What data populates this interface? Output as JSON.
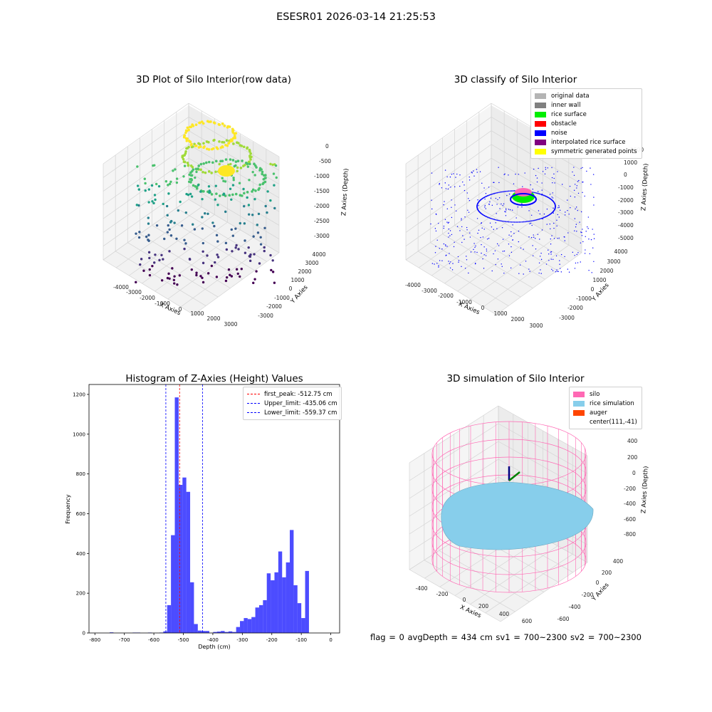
{
  "suptitle": "ESESR01 2026-03-14 21:25:53",
  "panels": {
    "raw": {
      "title": "3D Plot of Silo Interior(row data)",
      "xlabel": "X Axies",
      "ylabel": "Y Axies",
      "zlabel": "Z Axies (Depth)",
      "xticks": [
        "-4000",
        "-3000",
        "-2000",
        "-1000",
        "0",
        "1000",
        "2000",
        "3000"
      ],
      "yticks": [
        "4000",
        "3000",
        "2000",
        "1000",
        "0",
        "-1000",
        "-2000",
        "-3000"
      ],
      "zticks": [
        "0",
        "-500",
        "-1000",
        "-1500",
        "-2000",
        "-2500",
        "-3000"
      ]
    },
    "classify": {
      "title": "3D classify of Silo Interior",
      "xlabel": "X Axies",
      "ylabel": "Y Axies",
      "zlabel": "Z Axies (Depth)",
      "xticks": [
        "-4000",
        "-3000",
        "-2000",
        "-1000",
        "0",
        "1000",
        "2000",
        "3000"
      ],
      "yticks": [
        "4000",
        "3000",
        "2000",
        "1000",
        "0",
        "-1000",
        "-2000",
        "-3000"
      ],
      "zticks": [
        "2000",
        "1000",
        "0",
        "-1000",
        "-2000",
        "-3000",
        "-4000",
        "-5000"
      ],
      "legend": [
        {
          "label": "original data",
          "color": "#b4b4b4"
        },
        {
          "label": "inner wall",
          "color": "#808080"
        },
        {
          "label": "rice surface",
          "color": "#00ee00"
        },
        {
          "label": "obstacle",
          "color": "#ff0000"
        },
        {
          "label": "noise",
          "color": "#0000ff"
        },
        {
          "label": "interpolated rice surface",
          "color": "#800080"
        },
        {
          "label": "symmetric generated points",
          "color": "#ffff00"
        }
      ]
    },
    "simulation": {
      "title": "3D simulation of Silo Interior",
      "xlabel": "X Axies",
      "ylabel": "Y Axies",
      "zlabel": "Z Axies (Depth)",
      "xticks": [
        "-400",
        "-200",
        "0",
        "200",
        "400",
        "600"
      ],
      "yticks": [
        "400",
        "200",
        "0",
        "-200",
        "-400",
        "-600"
      ],
      "zticks": [
        "400",
        "200",
        "0",
        "-200",
        "-400",
        "-600",
        "-800"
      ],
      "legend": [
        {
          "label": "silo",
          "color": "#ff69b4"
        },
        {
          "label": "rice simulation",
          "color": "#87ceeb"
        },
        {
          "label": "auger",
          "color": "#ff4500"
        },
        {
          "label": "center(111,-41)",
          "color": ""
        }
      ]
    }
  },
  "status_line": "flag = 0     avgDepth = 434 cm  sv1 = 700~2300  sv2 = 700~2300",
  "chart_data": {
    "type": "bar",
    "title": "Histogram of Z-Axies (Height) Values",
    "xlabel": "Depth (cm)",
    "ylabel": "Frequency",
    "xlim": [
      -820,
      30
    ],
    "ylim": [
      0,
      1250
    ],
    "xticks": [
      -800,
      -700,
      -600,
      -500,
      -400,
      -300,
      -200,
      -100,
      0
    ],
    "yticks": [
      0,
      200,
      400,
      600,
      800,
      1000,
      1200
    ],
    "bar_color": "#0000ff",
    "bins": [
      {
        "x0": -750,
        "x1": -737,
        "count": 3
      },
      {
        "x0": -672,
        "x1": -659,
        "count": 2
      },
      {
        "x0": -659,
        "x1": -646,
        "count": 2
      },
      {
        "x0": -620,
        "x1": -607,
        "count": 2
      },
      {
        "x0": -581,
        "x1": -568,
        "count": 2
      },
      {
        "x0": -568,
        "x1": -555,
        "count": 8
      },
      {
        "x0": -555,
        "x1": -542,
        "count": 140
      },
      {
        "x0": -542,
        "x1": -529,
        "count": 492
      },
      {
        "x0": -529,
        "x1": -516,
        "count": 1185
      },
      {
        "x0": -516,
        "x1": -503,
        "count": 745
      },
      {
        "x0": -503,
        "x1": -490,
        "count": 782
      },
      {
        "x0": -490,
        "x1": -477,
        "count": 710
      },
      {
        "x0": -477,
        "x1": -464,
        "count": 255
      },
      {
        "x0": -464,
        "x1": -451,
        "count": 45
      },
      {
        "x0": -451,
        "x1": -438,
        "count": 12
      },
      {
        "x0": -438,
        "x1": -425,
        "count": 10
      },
      {
        "x0": -425,
        "x1": -412,
        "count": 10
      },
      {
        "x0": -399,
        "x1": -386,
        "count": 5
      },
      {
        "x0": -386,
        "x1": -373,
        "count": 7
      },
      {
        "x0": -373,
        "x1": -360,
        "count": 10
      },
      {
        "x0": -360,
        "x1": -347,
        "count": 5
      },
      {
        "x0": -347,
        "x1": -334,
        "count": 8
      },
      {
        "x0": -334,
        "x1": -321,
        "count": 5
      },
      {
        "x0": -321,
        "x1": -308,
        "count": 30
      },
      {
        "x0": -308,
        "x1": -295,
        "count": 60
      },
      {
        "x0": -295,
        "x1": -282,
        "count": 75
      },
      {
        "x0": -282,
        "x1": -269,
        "count": 70
      },
      {
        "x0": -269,
        "x1": -256,
        "count": 80
      },
      {
        "x0": -256,
        "x1": -243,
        "count": 128
      },
      {
        "x0": -243,
        "x1": -230,
        "count": 140
      },
      {
        "x0": -230,
        "x1": -217,
        "count": 165
      },
      {
        "x0": -217,
        "x1": -204,
        "count": 300
      },
      {
        "x0": -204,
        "x1": -191,
        "count": 265
      },
      {
        "x0": -191,
        "x1": -178,
        "count": 305
      },
      {
        "x0": -178,
        "x1": -165,
        "count": 410
      },
      {
        "x0": -165,
        "x1": -152,
        "count": 280
      },
      {
        "x0": -152,
        "x1": -139,
        "count": 355
      },
      {
        "x0": -139,
        "x1": -126,
        "count": 518
      },
      {
        "x0": -126,
        "x1": -113,
        "count": 240
      },
      {
        "x0": -113,
        "x1": -100,
        "count": 150
      },
      {
        "x0": -100,
        "x1": -87,
        "count": 75
      },
      {
        "x0": -87,
        "x1": -74,
        "count": 312
      }
    ],
    "vlines": [
      {
        "label": "first_peak: -512.75 cm",
        "x": -512.75,
        "color": "#ff0000"
      },
      {
        "label": "Upper_limit: -435.06 cm",
        "x": -435.06,
        "color": "#0000ff"
      },
      {
        "label": "Lower_limit: -559.37 cm",
        "x": -559.37,
        "color": "#0000ff"
      }
    ]
  }
}
